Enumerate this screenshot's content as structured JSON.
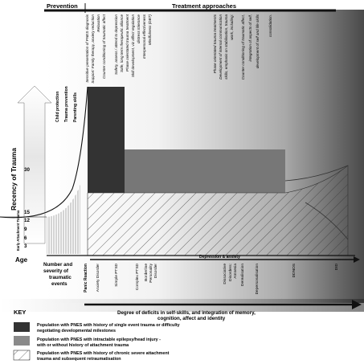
{
  "header": {
    "prevention": "Prevention",
    "treatment": "Treatment approaches"
  },
  "prevention_items": [
    "Child protection",
    "Trauma prevention",
    "Parenting skills"
  ],
  "treatment_items": [
    "Sensitive presentation of PNES diagnosis",
    "Support: Family therapy, anxiety reduction",
    "Relaxation",
    "Counter conditioning of traumatic affect",
    "Safety, assess / attend to depression",
    "Safe, long term therapeutic alliance",
    "Phase orientated trauma treatment",
    "Skill development, viz affect regulation",
    "distress tolerance",
    "Interpersonal effectiveness",
    "Mindfulness (DBT)",
    "",
    "Phase orientated trauma treatments",
    "Development of internal communication",
    "skills, emphasis on stabilisation, trauma",
    "work, including:",
    "Counter conditioning of traumatic affect,",
    "integration of aspects of self,",
    "development of self and life skills",
    "consolidation."
  ],
  "y_axis": {
    "label": "Recency of Trauma",
    "ticks": [
      "30",
      "15",
      "12",
      "9",
      "6",
      "3"
    ],
    "sub_label": "Early Attachment Trauma",
    "age_label": "Age"
  },
  "x_axis": {
    "number_label": [
      "Number and",
      "severity of",
      "traumatic",
      "events"
    ],
    "depression_label": "Depression & anxiety",
    "categories": [
      "Panic Reaction",
      "Anxiety Disorder",
      "Simple PTSD",
      "Complex PTSD",
      "Borderline",
      "Personality",
      "Disorder",
      "Dissociative",
      "Disorders:",
      "Amnesia",
      "Derealisation",
      "Depersonalisation",
      "DDNOS",
      "DID"
    ],
    "deficit_label": [
      "Degree of deficits in self-skills, and integration of memory,",
      "cognition, affect and identity"
    ]
  },
  "key": {
    "title": "KEY",
    "items": [
      {
        "lines": [
          "Population with PNES with history of single event trauma or difficulty",
          "negotiating developmental milestones"
        ],
        "color": "#333333"
      },
      {
        "lines": [
          "Population with PNES with intractable epilepsy/head injury -",
          "with or without history of attachment trauma"
        ],
        "color": "#8a8a8a"
      },
      {
        "lines": [
          "Population with PNES with history of chronic severe attachment",
          "trauma and subsequent retraumatisation"
        ],
        "color": "#ffffff"
      }
    ]
  }
}
